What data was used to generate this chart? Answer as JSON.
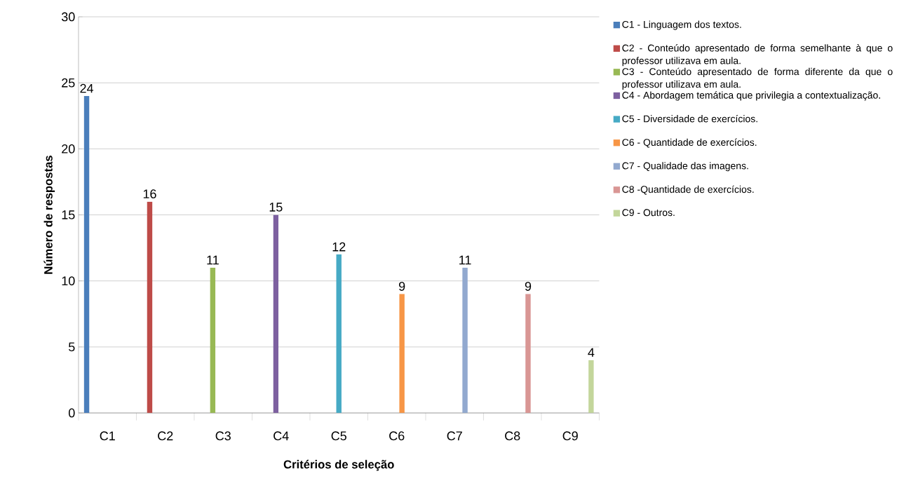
{
  "chart_data": {
    "type": "bar",
    "xlabel": "Critérios de seleção",
    "ylabel": "Número de respostas",
    "categories": [
      "C1",
      "C2",
      "C3",
      "C4",
      "C5",
      "C6",
      "C7",
      "C8",
      "C9"
    ],
    "series": [
      {
        "name": "C1 - Linguagem dos textos.",
        "color": "#4a7ebb",
        "values": [
          24,
          null,
          null,
          null,
          null,
          null,
          null,
          null,
          null
        ]
      },
      {
        "name": "C2 - Conteúdo apresentado de forma semelhante à que o professor utilizava em aula.",
        "color": "#be4b48",
        "values": [
          null,
          16,
          null,
          null,
          null,
          null,
          null,
          null,
          null
        ]
      },
      {
        "name": "C3 - Conteúdo apresentado de forma diferente da que o professor utilizava em aula.",
        "color": "#98b954",
        "values": [
          null,
          null,
          11,
          null,
          null,
          null,
          null,
          null,
          null
        ]
      },
      {
        "name": "C4 - Abordagem temática que privilegia a contextualização.",
        "color": "#7d60a0",
        "values": [
          null,
          null,
          null,
          15,
          null,
          null,
          null,
          null,
          null
        ]
      },
      {
        "name": "C5 - Diversidade de exercícios.",
        "color": "#46aac5",
        "values": [
          null,
          null,
          null,
          null,
          12,
          null,
          null,
          null,
          null
        ]
      },
      {
        "name": "C6 - Quantidade de exercícios.",
        "color": "#f79646",
        "values": [
          null,
          null,
          null,
          null,
          null,
          9,
          null,
          null,
          null
        ]
      },
      {
        "name": "C7 - Qualidade das imagens.",
        "color": "#92a9cf",
        "values": [
          null,
          null,
          null,
          null,
          null,
          null,
          11,
          null,
          null
        ]
      },
      {
        "name": "C8 -Quantidade de exercícios.",
        "color": "#d99694",
        "values": [
          null,
          null,
          null,
          null,
          null,
          null,
          null,
          9,
          null
        ]
      },
      {
        "name": "C9 - Outros.",
        "color": "#c3d69b",
        "values": [
          null,
          null,
          null,
          null,
          null,
          null,
          null,
          null,
          4
        ]
      }
    ],
    "ylim": [
      0,
      30
    ],
    "yticks": [
      0,
      5,
      10,
      15,
      20,
      25,
      30
    ],
    "grid": "y",
    "legend": "right",
    "data_labels": true
  }
}
